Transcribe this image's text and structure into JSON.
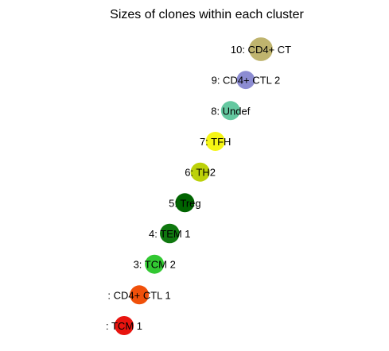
{
  "chart_data": {
    "type": "scatter",
    "title": "Sizes of clones within each cluster",
    "xlabel": "",
    "ylabel": "",
    "grid": false,
    "legend": "none",
    "labels": [
      ": TCM 1",
      ": CD4+ CTL 1",
      "3: TCM 2",
      "4: TEM 1",
      "5: Treg",
      "6: TH2",
      "7: TFH",
      "8: Undef",
      "9: CD4+ CTL 2",
      "10: CD4+ CT"
    ],
    "colors": [
      "#e8140f",
      "#f0500a",
      "#32c832",
      "#0f780f",
      "#006400",
      "#bcd10a",
      "#f5f514",
      "#64c8a0",
      "#8c8cd2",
      "#bfb46e"
    ],
    "values": [
      1.0,
      1.0,
      1.0,
      1.05,
      1.0,
      1.0,
      1.0,
      1.0,
      0.9,
      1.55
    ]
  }
}
